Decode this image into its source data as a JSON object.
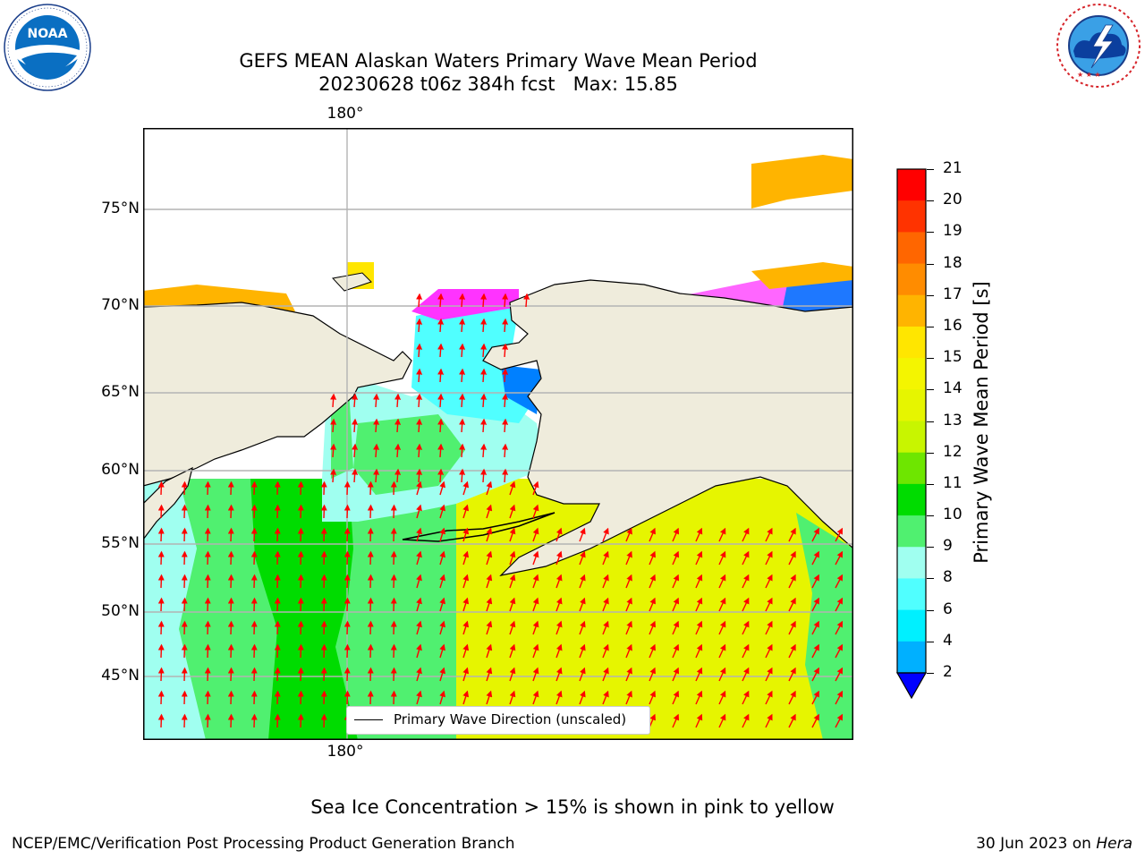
{
  "header": {
    "title_line1": "GEFS MEAN Alaskan Waters Primary Wave Mean Period",
    "title_line2": "20230628 t06z 384h fcst   Max: 15.85"
  },
  "logos": {
    "left": {
      "name": "noaa-logo",
      "text": "NOAA",
      "ring_text": "NATIONAL OCEANIC AND ATMOSPHERIC ADMINISTRATION · U.S. DEPARTMENT OF COMMERCE"
    },
    "right": {
      "name": "nws-logo",
      "ring_text": "NATIONAL WEATHER SERVICE"
    }
  },
  "map": {
    "longitude_label": "180°",
    "latitude_labels": [
      "75°N",
      "70°N",
      "65°N",
      "60°N",
      "55°N",
      "50°N",
      "45°N"
    ],
    "legend_label": "Primary Wave Direction (unscaled)",
    "arrow_color": "#ff0000",
    "land_color": "#efecdc"
  },
  "colorbar": {
    "label": "Primary Wave Mean Period [s]",
    "ticks": [
      "21",
      "20",
      "19",
      "18",
      "17",
      "16",
      "15",
      "14",
      "13",
      "12",
      "11",
      "10",
      "9",
      "8",
      "6",
      "4",
      "2"
    ],
    "colors_top_to_bottom": [
      "#ff0000",
      "#ff3300",
      "#ff6600",
      "#ff8c00",
      "#ffb400",
      "#ffe600",
      "#f4f500",
      "#e6f500",
      "#c8f500",
      "#6ee600",
      "#00dc00",
      "#50f070",
      "#a0fff0",
      "#50ffff",
      "#00f0ff",
      "#00b0ff",
      "#0050ff"
    ],
    "underflow_color": "#0000ff"
  },
  "footer": {
    "sea_ice_note": "Sea Ice Concentration > 15% is shown in pink to yellow",
    "credit_left": "NCEP/EMC/Verification Post Processing Product Generation Branch",
    "credit_date": "30 Jun 2023 on",
    "credit_host": "Hera"
  }
}
